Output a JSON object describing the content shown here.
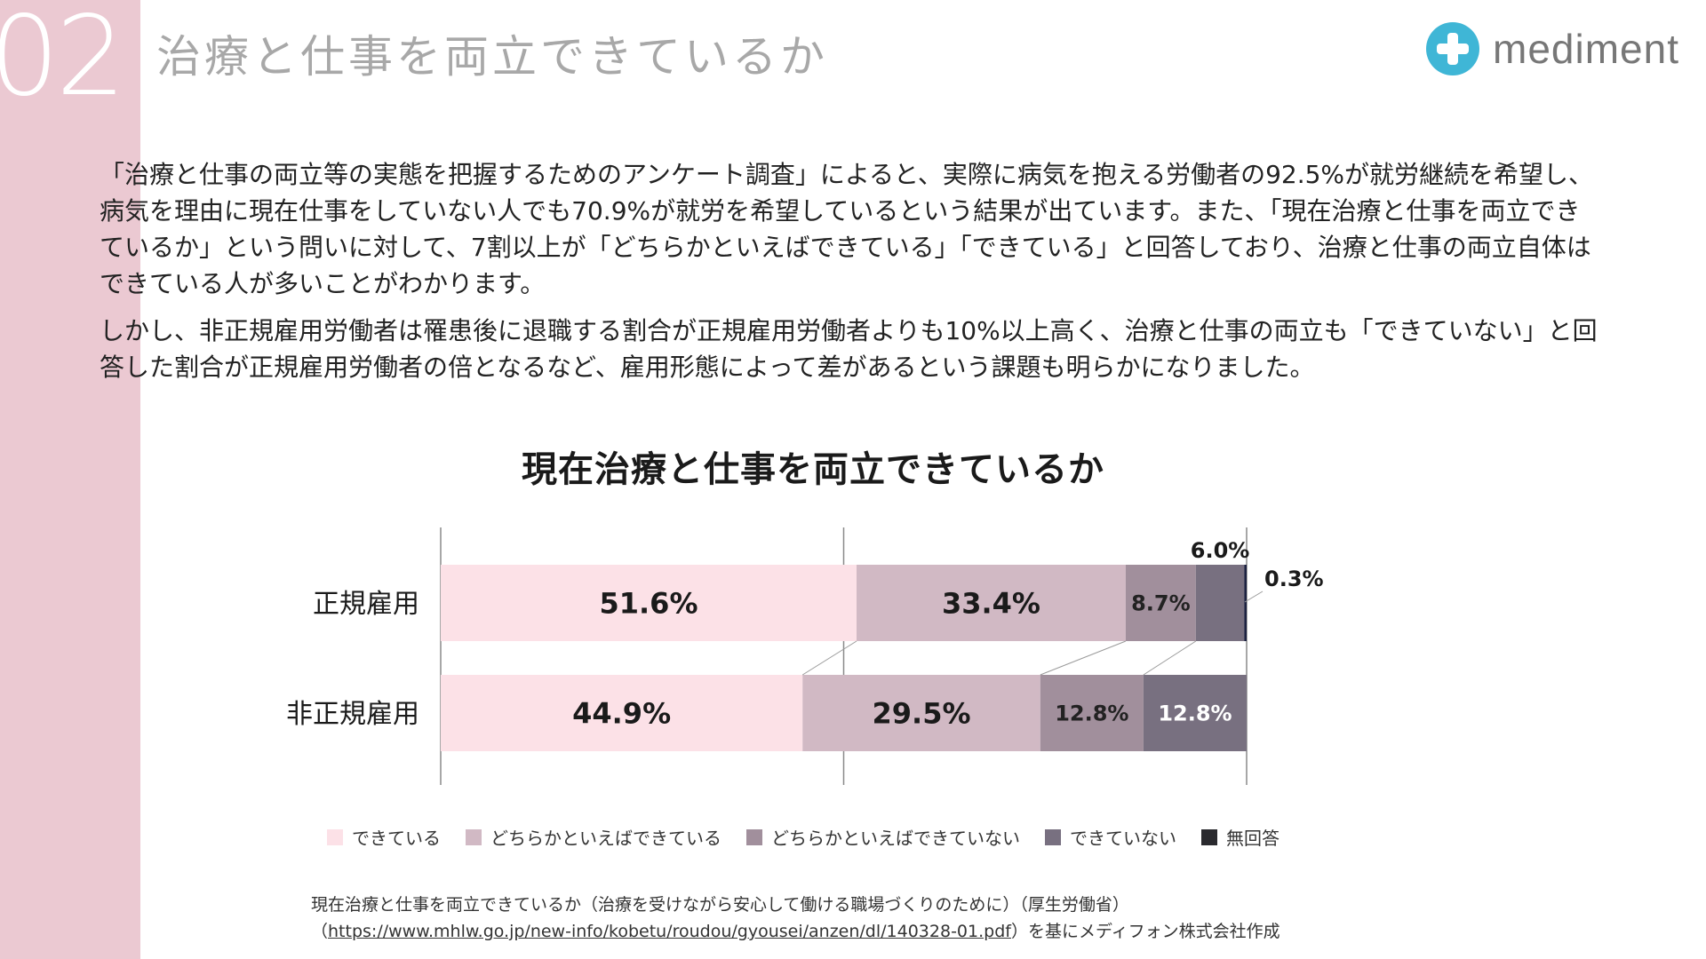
{
  "header": {
    "number": "02",
    "title": "治療と仕事を両立できているか",
    "logo_text": "mediment"
  },
  "body": {
    "paragraph1": "「治療と仕事の両立等の実態を把握するためのアンケート調査」によると、実際に病気を抱える労働者の92.5%が就労継続を希望し、病気を理由に現在仕事をしていない人でも70.9%が就労を希望しているという結果が出ています。また、「現在治療と仕事を両立できているか」という問いに対して、7割以上が「どちらかといえばできている」「できている」と回答しており、治療と仕事の両立自体はできている人が多いことがわかります。",
    "paragraph2": "しかし、非正規雇用労働者は罹患後に退職する割合が正規雇用労働者よりも10%以上高く、治療と仕事の両立も「できていない」と回答した割合が正規雇用労働者の倍となるなど、雇用形態によって差があるという課題も明らかになりました。"
  },
  "chart_data": {
    "type": "bar",
    "orientation": "horizontal-stacked-100",
    "title": "現在治療と仕事を両立できているか",
    "categories": [
      "正規雇用",
      "非正規雇用"
    ],
    "series": [
      {
        "name": "できている",
        "values": [
          51.6,
          44.9
        ],
        "labels": [
          "51.6%",
          "44.9%"
        ],
        "color": "#fce1e7"
      },
      {
        "name": "どちらかといえばできている",
        "values": [
          33.4,
          29.5
        ],
        "labels": [
          "33.4%",
          "29.5%"
        ],
        "color": "#d1b9c4"
      },
      {
        "name": "どちらかといえばできていない",
        "values": [
          8.7,
          12.8
        ],
        "labels": [
          "8.7%",
          "12.8%"
        ],
        "color": "#a18f9c"
      },
      {
        "name": "できていない",
        "values": [
          6.0,
          12.8
        ],
        "labels": [
          "6.0%",
          "12.8%"
        ],
        "color": "#787080"
      },
      {
        "name": "無回答",
        "values": [
          0.3,
          0.0
        ],
        "labels": [
          "0.3%",
          ""
        ],
        "color": "#1c2140"
      }
    ],
    "xlim": [
      0,
      100
    ],
    "legend_position": "bottom"
  },
  "legend": {
    "items": [
      {
        "label": "できている",
        "color": "#fce1e7"
      },
      {
        "label": "どちらかといえばできている",
        "color": "#d1b9c4"
      },
      {
        "label": "どちらかといえばできていない",
        "color": "#a18f9c"
      },
      {
        "label": "できていない",
        "color": "#787080"
      },
      {
        "label": "無回答",
        "color": "#2a2a2e"
      }
    ]
  },
  "source": {
    "line1": "現在治療と仕事を両立できているか（治療を受けながら安心して働ける職場づくりのために）（厚生労働省）",
    "open_paren": "（",
    "url": "https://www.mhlw.go.jp/new-info/kobetu/roudou/gyousei/anzen/dl/140328-01.pdf",
    "suffix": "）を基にメディフォン株式会社作成"
  }
}
